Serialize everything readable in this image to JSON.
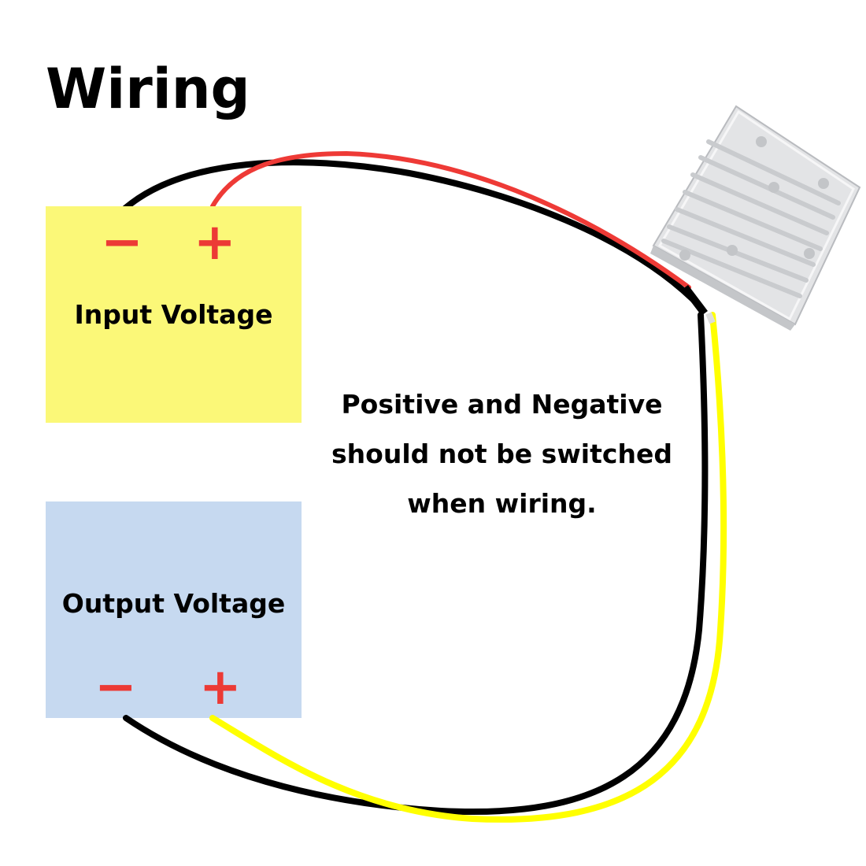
{
  "title": "Wiring",
  "input_panel": {
    "label": "Input Voltage",
    "minus": "−",
    "plus": "+",
    "color": "#fbf878"
  },
  "output_panel": {
    "label": "Output Voltage",
    "minus": "−",
    "plus": "+",
    "color": "#c6d9f0"
  },
  "note": {
    "line1": "Positive and Negative",
    "line2": "should not be switched",
    "line3": "when wiring."
  },
  "colors": {
    "sign": "#ec3a35",
    "wire_red": "#ee3a36",
    "wire_black": "#000000",
    "wire_yellow": "#ffff00",
    "module": "#e3e4e6"
  },
  "icons": {
    "module": "dc-converter-module-icon"
  }
}
